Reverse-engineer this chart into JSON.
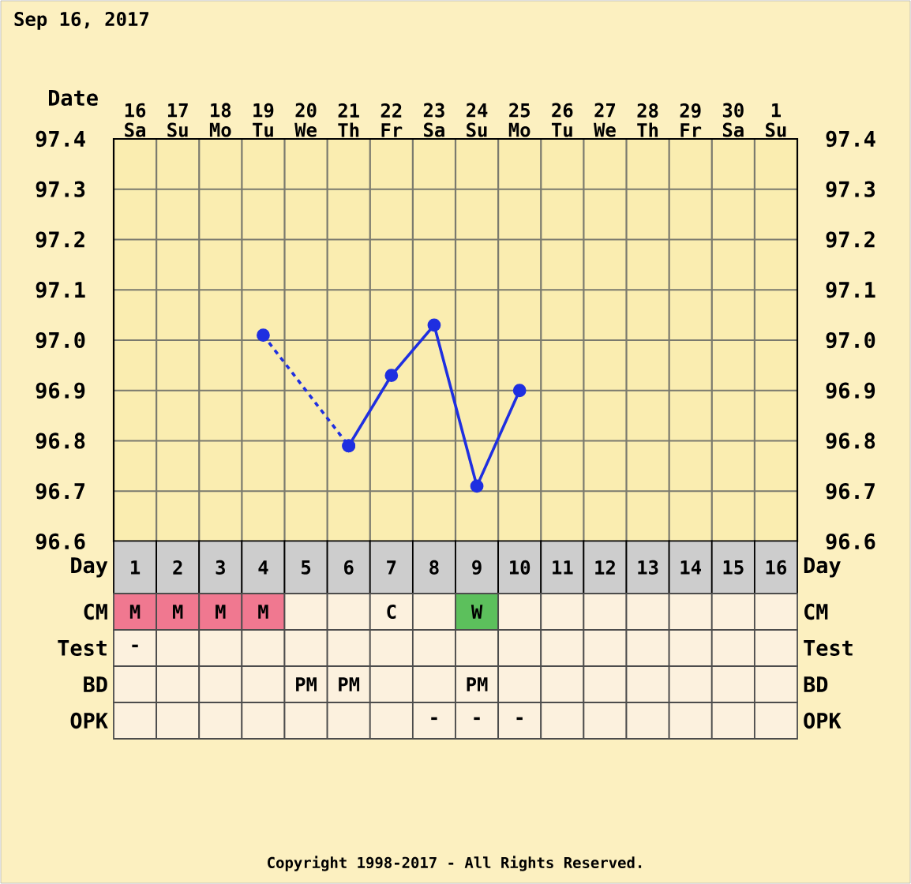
{
  "chart_data": [
    {
      "type": "line",
      "title": "Sep 16, 2017",
      "xlabel": "Date",
      "categories": [
        "16 Sa",
        "17 Su",
        "18 Mo",
        "19 Tu",
        "20 We",
        "21 Th",
        "22 Fr",
        "23 Sa",
        "24 Su",
        "25 Mo",
        "26 Tu",
        "27 We",
        "28 Th",
        "29 Fr",
        "30 Sa",
        "1 Su"
      ],
      "series": [
        {
          "color": "#1f2fe0",
          "line_style": "dashed",
          "values": [
            null,
            null,
            null,
            97.01,
            null,
            96.79,
            null,
            null,
            null,
            null,
            null,
            null,
            null,
            null,
            null,
            null
          ]
        },
        {
          "color": "#1f2fe0",
          "line_style": "solid",
          "values": [
            null,
            null,
            null,
            null,
            null,
            96.79,
            96.93,
            97.03,
            96.71,
            96.9,
            null,
            null,
            null,
            null,
            null,
            null
          ]
        }
      ],
      "marker": "circle",
      "grid": true,
      "ylim": [
        96.6,
        97.4
      ],
      "yticks": [
        96.6,
        96.7,
        96.8,
        96.9,
        {
          "value": 97,
          "label": "97.0"
        },
        97.1,
        97.2,
        97.3,
        97.4
      ],
      "y2lim": [
        96.6,
        97.4
      ],
      "y2ticks": [
        96.6,
        96.7,
        96.8,
        96.9,
        {
          "value": 97,
          "label": "97.0"
        },
        97.1,
        97.2,
        97.3,
        97.4
      ]
    },
    {
      "type": "heatmap",
      "xlabel": "Day",
      "categories": [
        "1",
        "2",
        "3",
        "4",
        "5",
        "6",
        "7",
        "8",
        "9",
        "10",
        "11",
        "12",
        "13",
        "14",
        "15",
        "16"
      ],
      "y_categories": [
        "CM",
        "Test",
        "BD",
        "OPK"
      ],
      "y2_categories": [
        "CM",
        "Test",
        "BD",
        "OPK"
      ],
      "cells": [
        [
          null,
          null,
          null,
          null,
          null,
          null,
          null,
          null,
          null,
          null,
          null,
          null,
          null,
          null,
          null,
          null
        ],
        [
          null,
          null,
          null,
          null,
          null,
          null,
          null,
          null,
          null,
          null,
          null,
          null,
          null,
          null,
          null,
          null
        ],
        [
          null,
          null,
          null,
          null,
          null,
          null,
          null,
          null,
          null,
          null,
          null,
          null,
          null,
          null,
          null,
          null
        ],
        [
          null,
          null,
          null,
          null,
          null,
          null,
          null,
          null,
          null,
          null,
          null,
          null,
          null,
          null,
          null,
          null
        ]
      ],
      "cell_labels": [
        [
          "M",
          "M",
          "M",
          "M",
          null,
          null,
          "C",
          null,
          "W",
          null,
          null,
          null,
          null,
          null,
          null,
          null
        ],
        [
          "-",
          null,
          null,
          null,
          null,
          null,
          null,
          null,
          null,
          null,
          null,
          null,
          null,
          null,
          null,
          null
        ],
        [
          null,
          null,
          null,
          null,
          "PM",
          "PM",
          null,
          null,
          "PM",
          null,
          null,
          null,
          null,
          null,
          null,
          null
        ],
        [
          null,
          null,
          null,
          null,
          null,
          null,
          null,
          "-",
          "-",
          "-",
          null,
          null,
          null,
          null,
          null,
          null
        ]
      ],
      "colors": [
        [
          "#f07890",
          "#f07890",
          "#f07890",
          "#f07890",
          null,
          null,
          null,
          null,
          "#5cc05c",
          null,
          null,
          null,
          null,
          null,
          null,
          null
        ],
        [
          null,
          null,
          null,
          null,
          null,
          null,
          null,
          null,
          null,
          null,
          null,
          null,
          null,
          null,
          null,
          null
        ],
        [
          null,
          null,
          null,
          null,
          null,
          null,
          null,
          null,
          null,
          null,
          null,
          null,
          null,
          null,
          null,
          null
        ],
        [
          null,
          null,
          null,
          null,
          null,
          null,
          null,
          null,
          null,
          null,
          null,
          null,
          null,
          null,
          null,
          null
        ]
      ],
      "annotations": [
        "Copyright 1998-2017 - All Rights Reserved."
      ]
    }
  ]
}
